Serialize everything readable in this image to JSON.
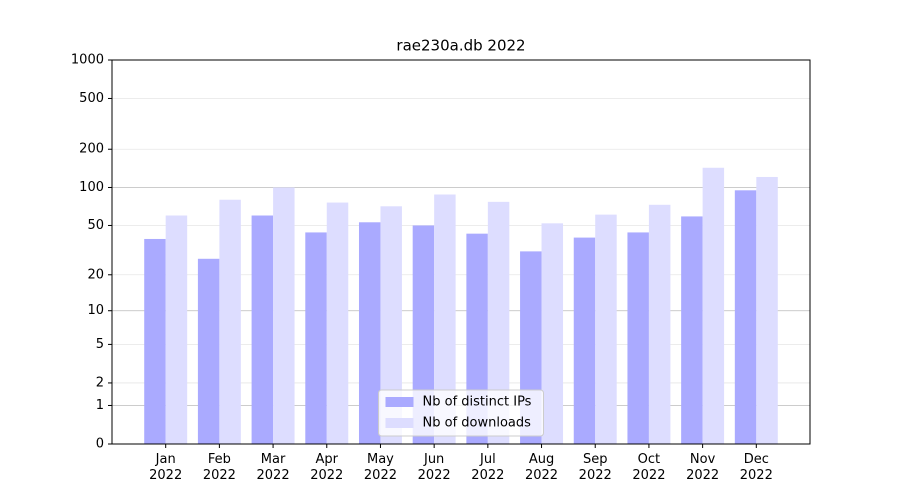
{
  "chart_data": {
    "type": "bar",
    "title": "rae230a.db 2022",
    "scale": "log1p",
    "categories": [
      "Jan\n2022",
      "Feb\n2022",
      "Mar\n2022",
      "Apr\n2022",
      "May\n2022",
      "Jun\n2022",
      "Jul\n2022",
      "Aug\n2022",
      "Sep\n2022",
      "Oct\n2022",
      "Nov\n2022",
      "Dec\n2022"
    ],
    "series": [
      {
        "name": "Nb of distinct IPs",
        "color": "#aaaaff",
        "values": [
          39,
          27,
          60,
          44,
          53,
          50,
          43,
          31,
          40,
          44,
          59,
          95
        ]
      },
      {
        "name": "Nb of downloads",
        "color": "#ddddff",
        "values": [
          60,
          80,
          100,
          76,
          71,
          88,
          77,
          52,
          61,
          73,
          143,
          121
        ]
      }
    ],
    "ylim": [
      0,
      1000
    ],
    "yticks": [
      0,
      1,
      2,
      5,
      10,
      20,
      50,
      100,
      200,
      500,
      1000
    ],
    "grid": true,
    "legend": "lower center"
  }
}
